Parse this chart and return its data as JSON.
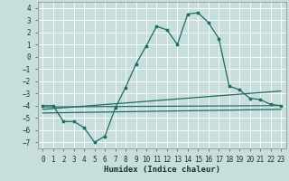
{
  "xlabel": "Humidex (Indice chaleur)",
  "ylabel": "",
  "xlim": [
    -0.5,
    23.5
  ],
  "ylim": [
    -7.5,
    4.5
  ],
  "xticks": [
    0,
    1,
    2,
    3,
    4,
    5,
    6,
    7,
    8,
    9,
    10,
    11,
    12,
    13,
    14,
    15,
    16,
    17,
    18,
    19,
    20,
    21,
    22,
    23
  ],
  "yticks": [
    -7,
    -6,
    -5,
    -4,
    -3,
    -2,
    -1,
    0,
    1,
    2,
    3,
    4
  ],
  "bg_color": "#c8dedd",
  "line_color": "#1e6b65",
  "grid_color": "#ffffff",
  "line1_x": [
    0,
    1,
    2,
    3,
    4,
    5,
    6,
    7,
    8,
    9,
    10,
    11,
    12,
    13,
    14,
    15,
    16,
    17,
    18,
    19,
    20,
    21,
    22,
    23
  ],
  "line1_y": [
    -4.0,
    -4.0,
    -5.3,
    -5.3,
    -5.8,
    -7.0,
    -6.5,
    -4.2,
    -2.5,
    -0.6,
    0.9,
    2.5,
    2.2,
    1.0,
    3.5,
    3.6,
    2.8,
    1.5,
    -2.4,
    -2.7,
    -3.4,
    -3.5,
    -3.9,
    -4.0
  ],
  "line2_x": [
    0,
    23
  ],
  "line2_y": [
    -4.1,
    -4.0
  ],
  "line3_x": [
    0,
    23
  ],
  "line3_y": [
    -4.3,
    -2.8
  ],
  "line4_x": [
    0,
    23
  ],
  "line4_y": [
    -4.6,
    -4.3
  ]
}
